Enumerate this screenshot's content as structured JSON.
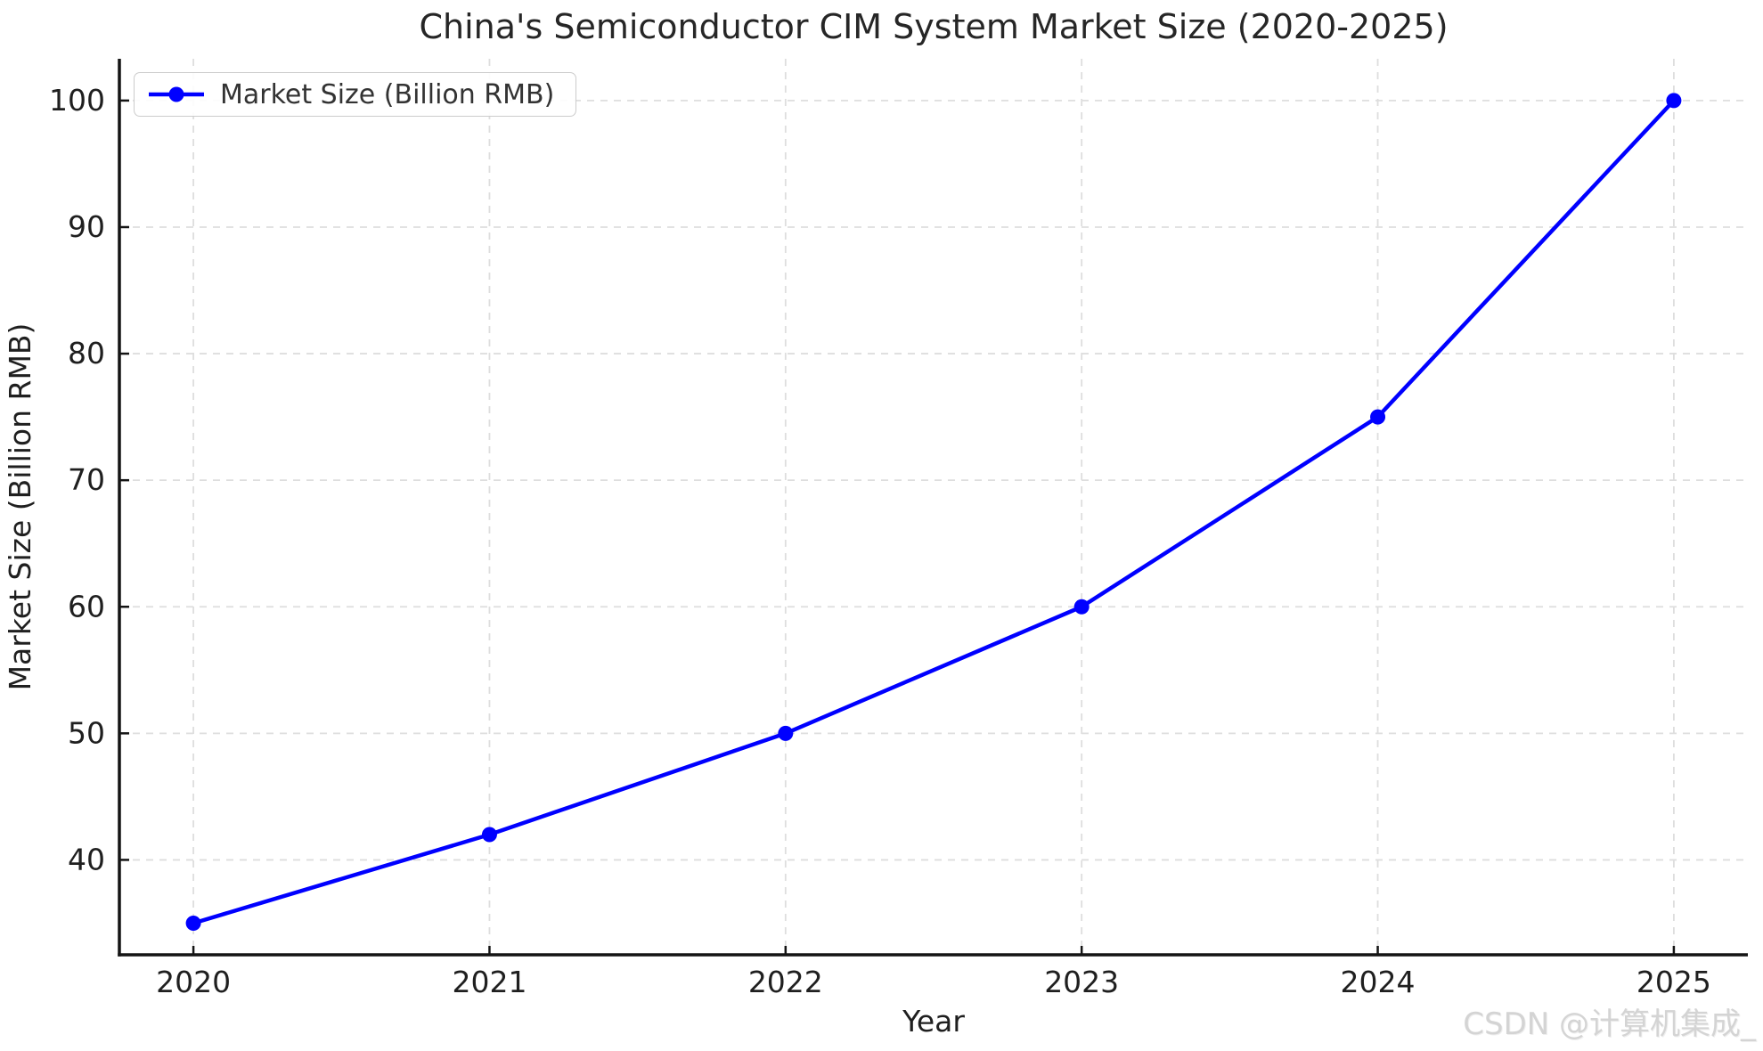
{
  "title": "China's Semiconductor CIM System Market Size (2020-2025)",
  "watermark": "CSDN @计算机集成_",
  "legend": {
    "position": "upper-left"
  },
  "colors": {
    "line": "#0000ff",
    "marker": "#0000ff",
    "grid": "#dedede",
    "spine": "#141414",
    "tick_text": "#1f1f1f",
    "title_text": "#262626",
    "watermark_text": "#d4d4d4"
  },
  "chart_data": {
    "type": "line",
    "title": "China's Semiconductor CIM System Market Size (2020-2025)",
    "xlabel": "Year",
    "ylabel": "Market Size (Billion RMB)",
    "categories": [
      2020,
      2021,
      2022,
      2023,
      2024,
      2025
    ],
    "series": [
      {
        "name": "Market Size (Billion RMB)",
        "values": [
          35,
          42,
          50,
          60,
          75,
          100
        ],
        "color": "#0000ff",
        "marker": "circle",
        "linewidth": 4.5,
        "markersize": 8.5
      }
    ],
    "xticks": [
      2020,
      2021,
      2022,
      2023,
      2024,
      2025
    ],
    "yticks": [
      40,
      50,
      60,
      70,
      80,
      90,
      100
    ],
    "xlim": [
      2019.75,
      2025.25
    ],
    "ylim": [
      32.5,
      103.3
    ],
    "grid": true,
    "grid_style": "dashed",
    "legend_position": "upper left",
    "legend_entries": [
      "Market Size (Billion RMB)"
    ]
  }
}
